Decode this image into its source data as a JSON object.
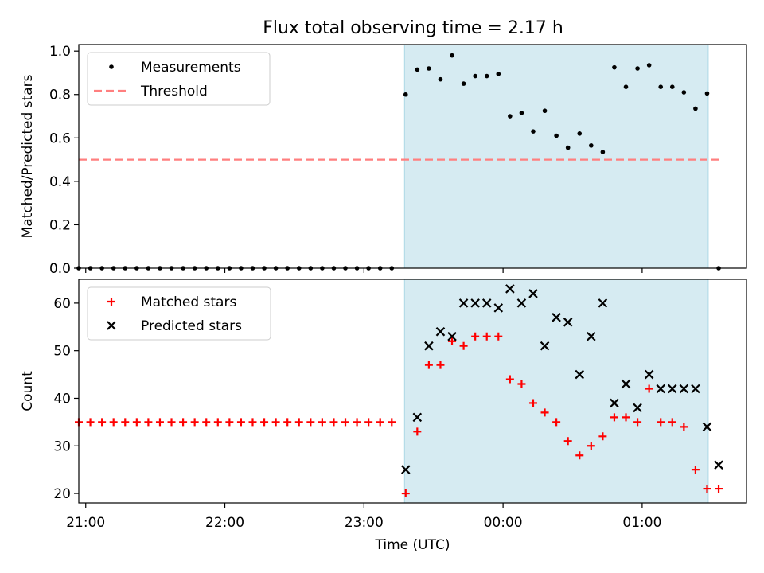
{
  "figure": {
    "title": "Flux total observing time = 2.17 h"
  },
  "colors": {
    "shade": "#add8e6",
    "threshold": "#ff7f7f",
    "measurement": "#000000",
    "matched": "#ff0000",
    "predicted": "#000000"
  },
  "chart_data": [
    {
      "type": "scatter",
      "ylabel": "Matched/Predicted stars",
      "ylim": [
        0,
        1.03
      ],
      "yticks": [
        "0.0",
        "0.2",
        "0.4",
        "0.6",
        "0.8",
        "1.0"
      ],
      "xlim": [
        "20:57",
        "01:45"
      ],
      "xticks": [
        "21:00",
        "22:00",
        "23:00",
        "00:00",
        "01:00"
      ],
      "shaded_span": [
        "23:17:30",
        "01:28:30"
      ],
      "legend": {
        "position": "top-left",
        "entries": [
          "Measurements",
          "Threshold"
        ]
      },
      "threshold": {
        "name": "Threshold",
        "y": 0.5,
        "x": [
          "20:57",
          "01:33"
        ]
      },
      "series": [
        {
          "name": "Measurements",
          "marker": "dot",
          "points": [
            [
              "20:57",
              0.0
            ],
            [
              "21:02",
              0.0
            ],
            [
              "21:07",
              0.0
            ],
            [
              "21:12",
              0.0
            ],
            [
              "21:17",
              0.0
            ],
            [
              "21:22",
              0.0
            ],
            [
              "21:27",
              0.0
            ],
            [
              "21:32",
              0.0
            ],
            [
              "21:37",
              0.0
            ],
            [
              "21:42",
              0.0
            ],
            [
              "21:47",
              0.0
            ],
            [
              "21:52",
              0.0
            ],
            [
              "21:57",
              0.0
            ],
            [
              "22:02",
              0.0
            ],
            [
              "22:07",
              0.0
            ],
            [
              "22:12",
              0.0
            ],
            [
              "22:17",
              0.0
            ],
            [
              "22:22",
              0.0
            ],
            [
              "22:27",
              0.0
            ],
            [
              "22:32",
              0.0
            ],
            [
              "22:37",
              0.0
            ],
            [
              "22:42",
              0.0
            ],
            [
              "22:47",
              0.0
            ],
            [
              "22:52",
              0.0
            ],
            [
              "22:57",
              0.0
            ],
            [
              "23:02",
              0.0
            ],
            [
              "23:07",
              0.0
            ],
            [
              "23:12",
              0.0
            ],
            [
              "23:18",
              0.8
            ],
            [
              "23:23",
              0.915
            ],
            [
              "23:28",
              0.92
            ],
            [
              "23:33",
              0.87
            ],
            [
              "23:38",
              0.98
            ],
            [
              "23:43",
              0.85
            ],
            [
              "23:48",
              0.885
            ],
            [
              "23:53",
              0.885
            ],
            [
              "23:58",
              0.895
            ],
            [
              "00:03",
              0.7
            ],
            [
              "00:08",
              0.715
            ],
            [
              "00:13",
              0.63
            ],
            [
              "00:18",
              0.725
            ],
            [
              "00:23",
              0.61
            ],
            [
              "00:28",
              0.555
            ],
            [
              "00:33",
              0.62
            ],
            [
              "00:38",
              0.565
            ],
            [
              "00:43",
              0.535
            ],
            [
              "00:48",
              0.925
            ],
            [
              "00:53",
              0.835
            ],
            [
              "00:58",
              0.92
            ],
            [
              "01:03",
              0.935
            ],
            [
              "01:08",
              0.835
            ],
            [
              "01:13",
              0.835
            ],
            [
              "01:18",
              0.81
            ],
            [
              "01:23",
              0.735
            ],
            [
              "01:28",
              0.805
            ],
            [
              "01:33",
              0.0
            ]
          ]
        }
      ]
    },
    {
      "type": "scatter",
      "xlabel": "Time (UTC)",
      "ylabel": "Count",
      "ylim": [
        18,
        65
      ],
      "yticks": [
        "20",
        "30",
        "40",
        "50",
        "60"
      ],
      "xlim": [
        "20:57",
        "01:45"
      ],
      "xticks": [
        "21:00",
        "22:00",
        "23:00",
        "00:00",
        "01:00"
      ],
      "shaded_span": [
        "23:17:30",
        "01:28:30"
      ],
      "legend": {
        "position": "top-left",
        "entries": [
          "Matched stars",
          "Predicted stars"
        ]
      },
      "series": [
        {
          "name": "Matched stars",
          "marker": "plus",
          "points": [
            [
              "20:57",
              35
            ],
            [
              "21:02",
              35
            ],
            [
              "21:07",
              35
            ],
            [
              "21:12",
              35
            ],
            [
              "21:17",
              35
            ],
            [
              "21:22",
              35
            ],
            [
              "21:27",
              35
            ],
            [
              "21:32",
              35
            ],
            [
              "21:37",
              35
            ],
            [
              "21:42",
              35
            ],
            [
              "21:47",
              35
            ],
            [
              "21:52",
              35
            ],
            [
              "21:57",
              35
            ],
            [
              "22:02",
              35
            ],
            [
              "22:07",
              35
            ],
            [
              "22:12",
              35
            ],
            [
              "22:17",
              35
            ],
            [
              "22:22",
              35
            ],
            [
              "22:27",
              35
            ],
            [
              "22:32",
              35
            ],
            [
              "22:37",
              35
            ],
            [
              "22:42",
              35
            ],
            [
              "22:47",
              35
            ],
            [
              "22:52",
              35
            ],
            [
              "22:57",
              35
            ],
            [
              "23:02",
              35
            ],
            [
              "23:07",
              35
            ],
            [
              "23:12",
              35
            ],
            [
              "23:18",
              20
            ],
            [
              "23:23",
              33
            ],
            [
              "23:28",
              47
            ],
            [
              "23:33",
              47
            ],
            [
              "23:38",
              52
            ],
            [
              "23:43",
              51
            ],
            [
              "23:48",
              53
            ],
            [
              "23:53",
              53
            ],
            [
              "23:58",
              53
            ],
            [
              "00:03",
              44
            ],
            [
              "00:08",
              43
            ],
            [
              "00:13",
              39
            ],
            [
              "00:18",
              37
            ],
            [
              "00:23",
              35
            ],
            [
              "00:28",
              31
            ],
            [
              "00:33",
              28
            ],
            [
              "00:38",
              30
            ],
            [
              "00:43",
              32
            ],
            [
              "00:48",
              36
            ],
            [
              "00:53",
              36
            ],
            [
              "00:58",
              35
            ],
            [
              "01:03",
              42
            ],
            [
              "01:08",
              35
            ],
            [
              "01:13",
              35
            ],
            [
              "01:18",
              34
            ],
            [
              "01:23",
              25
            ],
            [
              "01:28",
              21
            ],
            [
              "01:33",
              21
            ]
          ]
        },
        {
          "name": "Predicted stars",
          "marker": "x",
          "points": [
            [
              "23:18",
              25
            ],
            [
              "23:23",
              36
            ],
            [
              "23:28",
              51
            ],
            [
              "23:33",
              54
            ],
            [
              "23:38",
              53
            ],
            [
              "23:43",
              60
            ],
            [
              "23:48",
              60
            ],
            [
              "23:53",
              60
            ],
            [
              "23:58",
              59
            ],
            [
              "00:03",
              63
            ],
            [
              "00:08",
              60
            ],
            [
              "00:13",
              62
            ],
            [
              "00:18",
              51
            ],
            [
              "00:23",
              57
            ],
            [
              "00:28",
              56
            ],
            [
              "00:33",
              45
            ],
            [
              "00:38",
              53
            ],
            [
              "00:43",
              60
            ],
            [
              "00:48",
              39
            ],
            [
              "00:53",
              43
            ],
            [
              "00:58",
              38
            ],
            [
              "01:03",
              45
            ],
            [
              "01:08",
              42
            ],
            [
              "01:13",
              42
            ],
            [
              "01:18",
              42
            ],
            [
              "01:23",
              42
            ],
            [
              "01:28",
              34
            ],
            [
              "01:33",
              26
            ]
          ]
        }
      ]
    }
  ]
}
